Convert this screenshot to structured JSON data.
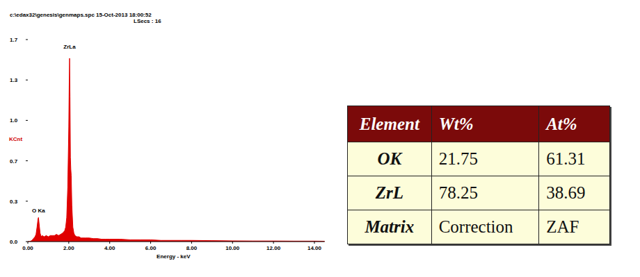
{
  "chart_data": {
    "type": "area",
    "title": "c:\\edax32\\genesis\\genmaps.spc  15-Oct-2013 18:00:52",
    "subtitle": "LSecs : 16",
    "x_label": "Energy - keV",
    "y_label": "KCnt",
    "x": [
      0,
      0.1,
      0.2,
      0.3,
      0.35,
      0.4,
      0.45,
      0.5,
      0.52,
      0.55,
      0.6,
      0.65,
      0.7,
      0.8,
      0.9,
      1.0,
      1.1,
      1.2,
      1.3,
      1.4,
      1.5,
      1.6,
      1.7,
      1.75,
      1.8,
      1.85,
      1.9,
      1.95,
      2.0,
      2.02,
      2.04,
      2.06,
      2.08,
      2.1,
      2.12,
      2.15,
      2.2,
      2.25,
      2.3,
      2.4,
      2.5,
      2.6,
      2.8,
      3.0,
      3.2,
      3.4,
      3.6,
      3.8,
      4.0,
      4.5,
      5.0,
      5.5,
      6.0,
      6.5,
      7.0,
      7.5,
      8.0,
      9.0,
      10.0,
      11.0,
      12.0,
      13.0,
      14.0,
      14.5
    ],
    "values": [
      0,
      0.0,
      0.01,
      0.03,
      0.04,
      0.06,
      0.12,
      0.19,
      0.2,
      0.15,
      0.07,
      0.04,
      0.05,
      0.04,
      0.05,
      0.04,
      0.05,
      0.05,
      0.05,
      0.06,
      0.05,
      0.06,
      0.07,
      0.08,
      0.09,
      0.12,
      0.2,
      0.45,
      0.95,
      1.3,
      1.52,
      1.2,
      0.7,
      0.6,
      0.55,
      0.3,
      0.12,
      0.07,
      0.05,
      0.04,
      0.04,
      0.03,
      0.03,
      0.03,
      0.025,
      0.025,
      0.02,
      0.02,
      0.02,
      0.02,
      0.015,
      0.015,
      0.015,
      0.01,
      0.01,
      0.01,
      0.01,
      0.008,
      0.006,
      0.005,
      0.005,
      0.004,
      0.004,
      0.003
    ],
    "color": "#e00000",
    "xlim": [
      0,
      14.5
    ],
    "ylim": [
      0,
      1.675
    ],
    "xticks": [
      {
        "value": 0,
        "label": "0.00"
      },
      {
        "value": 2,
        "label": "2.00"
      },
      {
        "value": 4,
        "label": "4.00"
      },
      {
        "value": 6,
        "label": "6.00"
      },
      {
        "value": 8,
        "label": "8.00"
      },
      {
        "value": 10,
        "label": "10.00"
      },
      {
        "value": 12,
        "label": "12.00"
      },
      {
        "value": 14,
        "label": "14.00"
      }
    ],
    "yticks": [
      {
        "value": 0,
        "label": "0.0"
      },
      {
        "value": 0.335,
        "label": "0.3"
      },
      {
        "value": 0.67,
        "label": "0.7"
      },
      {
        "value": 1.005,
        "label": "1.0"
      },
      {
        "value": 1.34,
        "label": "1.3"
      },
      {
        "value": 1.675,
        "label": "1.7"
      }
    ],
    "grid": false,
    "annotations": [
      {
        "text": "ZrLa",
        "x": 2.04,
        "y": 1.6
      },
      {
        "text": "O Ka",
        "x": 0.52,
        "y": 0.24
      }
    ]
  },
  "table": {
    "header": [
      "Element",
      "Wt%",
      "At%"
    ],
    "rows": [
      [
        "OK",
        21.75,
        61.31
      ],
      [
        "ZrL",
        78.25,
        38.69
      ],
      [
        "Matrix",
        "Correction",
        "ZAF"
      ]
    ]
  }
}
